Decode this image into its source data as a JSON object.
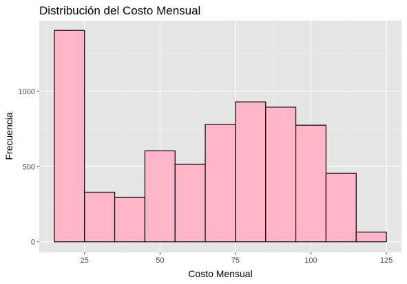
{
  "chart_data": {
    "type": "bar",
    "title": "Distribución del Costo Mensual",
    "xlabel": "Costo Mensual",
    "ylabel": "Frecuencia",
    "bin_edges": [
      15,
      25,
      35,
      45,
      55,
      65,
      75,
      85,
      95,
      105,
      115,
      125
    ],
    "values": [
      1405,
      330,
      295,
      605,
      515,
      780,
      930,
      895,
      775,
      455,
      65
    ],
    "xlim": [
      10,
      130
    ],
    "ylim": [
      -70,
      1470
    ],
    "x_ticks": [
      25,
      50,
      75,
      100,
      125
    ],
    "y_ticks": [
      0,
      500,
      1000
    ],
    "x_tick_labels": [
      "25",
      "50",
      "75",
      "100",
      "125"
    ],
    "y_tick_labels": [
      "0",
      "500",
      "1000"
    ],
    "grid": true,
    "legend": "none",
    "colors": {
      "bar_fill": "#ffb6c8",
      "bar_stroke": "#000000",
      "panel": "#e5e5e5",
      "grid_major": "#ffffff",
      "grid_minor": "#f2f2f2"
    }
  }
}
